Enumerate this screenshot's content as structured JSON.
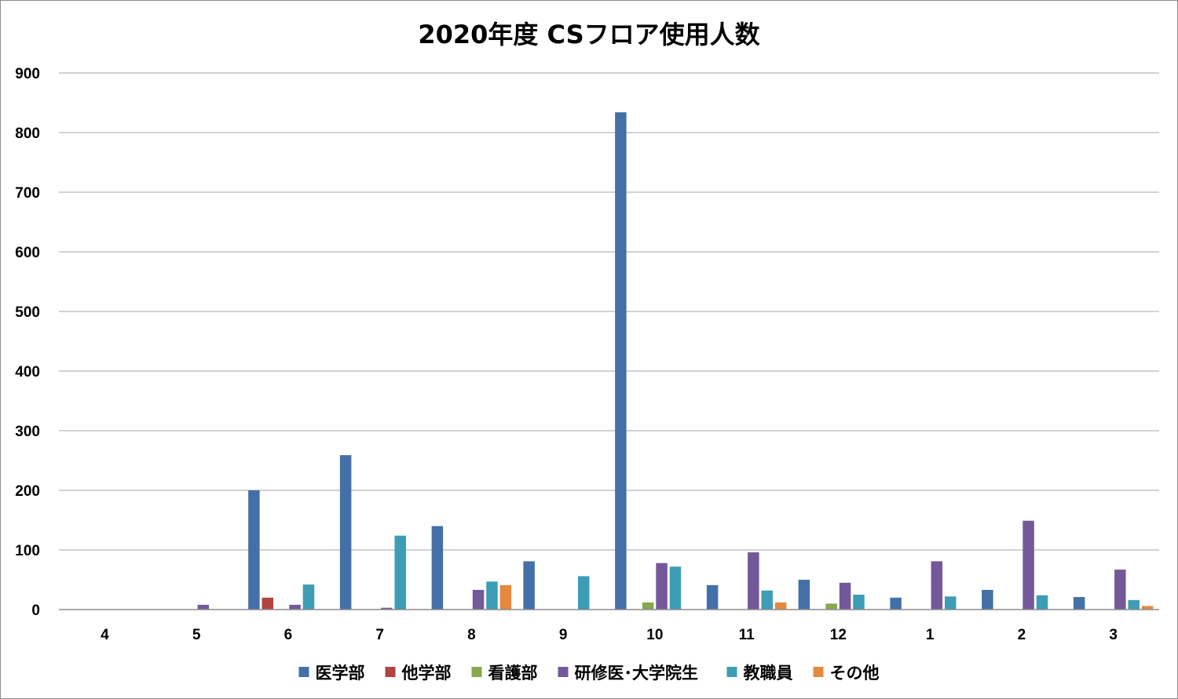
{
  "chart_data": {
    "type": "bar",
    "title": "2020年度 CSフロア使用人数",
    "xlabel": "",
    "ylabel": "",
    "categories": [
      "4",
      "5",
      "6",
      "7",
      "8",
      "9",
      "10",
      "11",
      "12",
      "1",
      "2",
      "3"
    ],
    "ylim": [
      0,
      900
    ],
    "yticks": [
      "0",
      "100",
      "200",
      "300",
      "400",
      "500",
      "600",
      "700",
      "800",
      "900"
    ],
    "grid": true,
    "legend_position": "bottom",
    "series": [
      {
        "name": "医学部",
        "color": "#4470A8",
        "values": [
          0,
          0,
          200,
          259,
          140,
          81,
          834,
          41,
          50,
          20,
          33,
          21
        ]
      },
      {
        "name": "他学部",
        "color": "#B24440",
        "values": [
          0,
          0,
          20,
          0,
          0,
          0,
          0,
          0,
          0,
          0,
          0,
          0
        ]
      },
      {
        "name": "看護部",
        "color": "#86A84E",
        "values": [
          0,
          0,
          0,
          0,
          0,
          0,
          12,
          0,
          10,
          0,
          0,
          0
        ]
      },
      {
        "name": "研修医･大学院生",
        "color": "#74599A",
        "values": [
          0,
          8,
          8,
          3,
          33,
          0,
          78,
          96,
          45,
          81,
          149,
          67
        ]
      },
      {
        "name": "教職員",
        "color": "#3D9DB5",
        "values": [
          0,
          0,
          42,
          124,
          47,
          56,
          72,
          32,
          25,
          22,
          24,
          16
        ]
      },
      {
        "name": "その他",
        "color": "#E4893E",
        "values": [
          0,
          0,
          0,
          0,
          41,
          0,
          0,
          12,
          0,
          0,
          0,
          6
        ]
      }
    ]
  }
}
